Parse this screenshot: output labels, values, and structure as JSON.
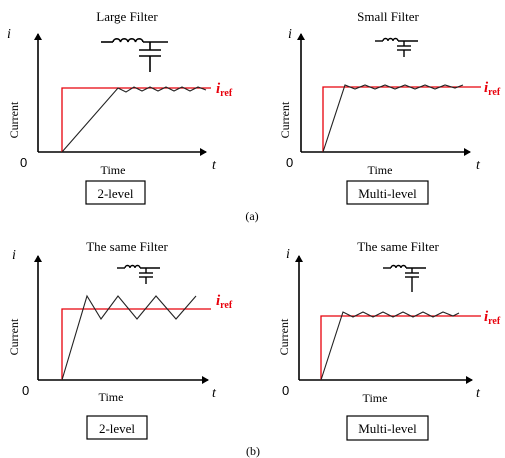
{
  "figure": {
    "caption_a": "(a)",
    "caption_b": "(b)",
    "colors": {
      "reference": "#e8000b",
      "response": "#222222",
      "axis": "#000000"
    },
    "panels": [
      {
        "filter_title": "Large Filter",
        "filter_size": "large",
        "y_axis_symbol": "i",
        "y_label": "Current",
        "x_label": "Time",
        "x_axis_symbol": "t",
        "origin": "0",
        "reference_label_main": "i",
        "reference_label_sub": "ref",
        "topology_label": "2-level",
        "response": "slow ramp with small ripple"
      },
      {
        "filter_title": "Small Filter",
        "filter_size": "small",
        "y_axis_symbol": "i",
        "y_label": "Current",
        "x_label": "Time",
        "x_axis_symbol": "t",
        "origin": "0",
        "reference_label_main": "i",
        "reference_label_sub": "ref",
        "topology_label": "Multi-level",
        "response": "fast ramp with small ripple"
      },
      {
        "filter_title": "The same Filter",
        "filter_size": "small",
        "y_axis_symbol": "i",
        "y_label": "Current",
        "x_label": "Time",
        "x_axis_symbol": "t",
        "origin": "0",
        "reference_label_main": "i",
        "reference_label_sub": "ref",
        "topology_label": "2-level",
        "response": "fast ramp with large ripple"
      },
      {
        "filter_title": "The same Filter",
        "filter_size": "small",
        "y_axis_symbol": "i",
        "y_label": "Current",
        "x_label": "Time",
        "x_axis_symbol": "t",
        "origin": "0",
        "reference_label_main": "i",
        "reference_label_sub": "ref",
        "topology_label": "Multi-level",
        "response": "fast ramp with small ripple"
      }
    ]
  }
}
